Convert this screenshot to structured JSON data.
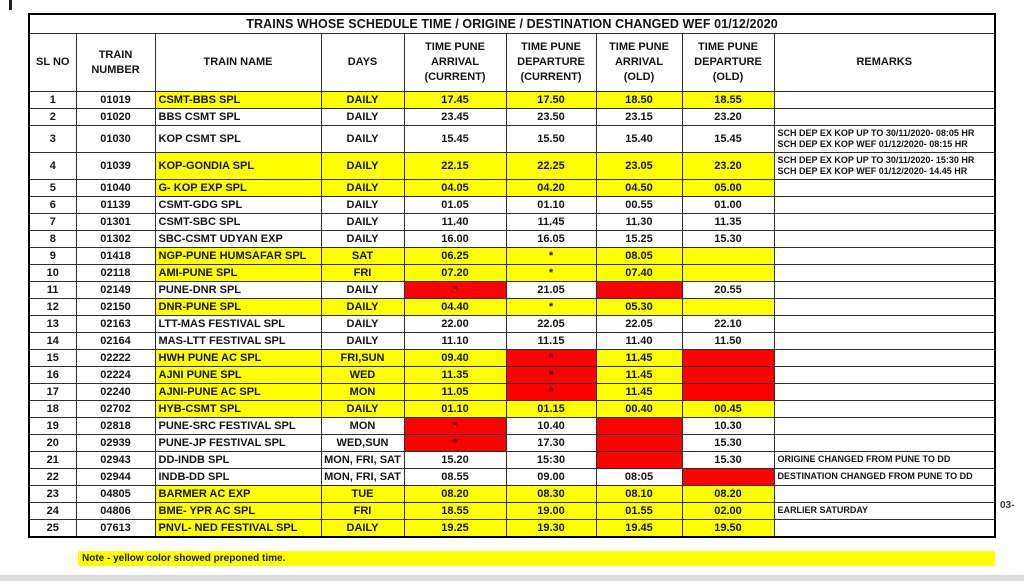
{
  "page": {
    "note": "Note - yellow color showed preponed time.",
    "page_label": "03-"
  },
  "colors": {
    "yellow_highlight": "#ffff00",
    "red_highlight": "#ff0000",
    "note_background": "#ffff00"
  },
  "table": {
    "title": "TRAINS WHOSE SCHEDULE TIME / ORIGINE / DESTINATION CHANGED WEF 01/12/2020",
    "columns": [
      "SL NO",
      "TRAIN\nNUMBER",
      "TRAIN NAME",
      "DAYS",
      "TIME PUNE\nARRIVAL\n(CURRENT)",
      "TIME PUNE\nDEPARTURE\n(CURRENT)",
      "TIME PUNE\nARRIVAL\n(OLD)",
      "TIME PUNE\nDEPARTURE\n(OLD)",
      "REMARKS"
    ],
    "rows": [
      {
        "cells": [
          "1",
          "01019",
          "CSMT-BBS SPL",
          "DAILY",
          "17.45",
          "17.50",
          "18.50",
          "18.55",
          ""
        ],
        "fills": [
          "w",
          "w",
          "y",
          "y",
          "y",
          "y",
          "y",
          "y",
          "w"
        ]
      },
      {
        "cells": [
          "2",
          "01020",
          "BBS CSMT SPL",
          "DAILY",
          "23.45",
          "23.50",
          "23.15",
          "23.20",
          ""
        ],
        "fills": [
          "w",
          "w",
          "w",
          "w",
          "w",
          "w",
          "w",
          "w",
          "w"
        ]
      },
      {
        "cells": [
          "3",
          "01030",
          "KOP CSMT SPL",
          "DAILY",
          "15.45",
          "15.50",
          "15.40",
          "15.45",
          "SCH DEP EX KOP UP TO 30/11/2020- 08:05 HR\nSCH DEP EX KOP WEF 01/12/2020- 08:15 HR"
        ],
        "fills": [
          "w",
          "w",
          "w",
          "w",
          "w",
          "w",
          "w",
          "w",
          "w"
        ],
        "tall": true
      },
      {
        "cells": [
          "4",
          "01039",
          "KOP-GONDIA SPL",
          "DAILY",
          "22.15",
          "22.25",
          "23.05",
          "23.20",
          "SCH DEP EX KOP UP TO 30/11/2020- 15:30 HR\nSCH DEP EX KOP WEF 01/12/2020- 14.45 HR"
        ],
        "fills": [
          "w",
          "w",
          "y",
          "y",
          "y",
          "y",
          "y",
          "y",
          "w"
        ],
        "tall": true
      },
      {
        "cells": [
          "5",
          "01040",
          "G- KOP EXP SPL",
          "DAILY",
          "04.05",
          "04.20",
          "04.50",
          "05.00",
          ""
        ],
        "fills": [
          "w",
          "w",
          "y",
          "y",
          "y",
          "y",
          "y",
          "y",
          "w"
        ]
      },
      {
        "cells": [
          "6",
          "01139",
          "CSMT-GDG SPL",
          "DAILY",
          "01.05",
          "01.10",
          "00.55",
          "01.00",
          ""
        ],
        "fills": [
          "w",
          "w",
          "w",
          "w",
          "w",
          "w",
          "w",
          "w",
          "w"
        ]
      },
      {
        "cells": [
          "7",
          "01301",
          "CSMT-SBC SPL",
          "DAILY",
          "11.40",
          "11.45",
          "11.30",
          "11.35",
          ""
        ],
        "fills": [
          "w",
          "w",
          "w",
          "w",
          "w",
          "w",
          "w",
          "w",
          "w"
        ]
      },
      {
        "cells": [
          "8",
          "01302",
          "SBC-CSMT UDYAN EXP",
          "DAILY",
          "16.00",
          "16.05",
          "15.25",
          "15.30",
          ""
        ],
        "fills": [
          "w",
          "w",
          "w",
          "w",
          "w",
          "w",
          "w",
          "w",
          "w"
        ]
      },
      {
        "cells": [
          "9",
          "01418",
          "NGP-PUNE HUMSAFAR SPL",
          "SAT",
          "06.25",
          "*",
          "08.05",
          "",
          ""
        ],
        "fills": [
          "w",
          "w",
          "y",
          "y",
          "y",
          "y",
          "y",
          "y",
          "w"
        ]
      },
      {
        "cells": [
          "10",
          "02118",
          "AMI-PUNE SPL",
          "FRI",
          "07.20",
          "*",
          "07.40",
          "",
          ""
        ],
        "fills": [
          "w",
          "w",
          "y",
          "y",
          "y",
          "y",
          "y",
          "y",
          "w"
        ]
      },
      {
        "cells": [
          "11",
          "02149",
          "PUNE-DNR SPL",
          "DAILY",
          "*",
          "21.05",
          "",
          "20.55",
          ""
        ],
        "fills": [
          "w",
          "w",
          "w",
          "w",
          "r",
          "w",
          "r",
          "w",
          "w"
        ]
      },
      {
        "cells": [
          "12",
          "02150",
          "DNR-PUNE SPL",
          "DAILY",
          "04.40",
          "*",
          "05.30",
          "",
          ""
        ],
        "fills": [
          "w",
          "w",
          "y",
          "y",
          "y",
          "y",
          "y",
          "y",
          "w"
        ]
      },
      {
        "cells": [
          "13",
          "02163",
          "LTT-MAS FESTIVAL SPL",
          "DAILY",
          "22.00",
          "22.05",
          "22.05",
          "22.10",
          ""
        ],
        "fills": [
          "w",
          "w",
          "w",
          "w",
          "w",
          "w",
          "w",
          "w",
          "w"
        ]
      },
      {
        "cells": [
          "14",
          "02164",
          "MAS-LTT FESTIVAL SPL",
          "DAILY",
          "11.10",
          "11.15",
          "11.40",
          "11.50",
          ""
        ],
        "fills": [
          "w",
          "w",
          "w",
          "w",
          "w",
          "w",
          "w",
          "w",
          "w"
        ]
      },
      {
        "cells": [
          "15",
          "02222",
          "HWH PUNE AC SPL",
          "FRI,SUN",
          "09.40",
          "*",
          "11.45",
          "",
          ""
        ],
        "fills": [
          "w",
          "w",
          "y",
          "y",
          "y",
          "r",
          "y",
          "r",
          "w"
        ]
      },
      {
        "cells": [
          "16",
          "02224",
          "AJNI PUNE SPL",
          "WED",
          "11.35",
          "*",
          "11.45",
          "",
          ""
        ],
        "fills": [
          "w",
          "w",
          "y",
          "y",
          "y",
          "r",
          "y",
          "r",
          "w"
        ]
      },
      {
        "cells": [
          "17",
          "02240",
          "AJNI-PUNE AC SPL",
          "MON",
          "11.05",
          "*",
          "11.45",
          "",
          ""
        ],
        "fills": [
          "w",
          "w",
          "y",
          "y",
          "y",
          "r",
          "y",
          "r",
          "w"
        ]
      },
      {
        "cells": [
          "18",
          "02702",
          "HYB-CSMT SPL",
          "DAILY",
          "01.10",
          "01.15",
          "00.40",
          "00.45",
          ""
        ],
        "fills": [
          "w",
          "w",
          "y",
          "y",
          "y",
          "y",
          "y",
          "y",
          "w"
        ]
      },
      {
        "cells": [
          "19",
          "02818",
          "PUNE-SRC FESTIVAL SPL",
          "MON",
          "*",
          "10.40",
          "",
          "10.30",
          ""
        ],
        "fills": [
          "w",
          "w",
          "w",
          "w",
          "r",
          "w",
          "r",
          "w",
          "w"
        ]
      },
      {
        "cells": [
          "20",
          "02939",
          "PUNE-JP FESTIVAL SPL",
          "WED,SUN",
          "*",
          "17.30",
          "",
          "15.30",
          ""
        ],
        "fills": [
          "w",
          "w",
          "w",
          "w",
          "r",
          "w",
          "r",
          "w",
          "w"
        ]
      },
      {
        "cells": [
          "21",
          "02943",
          "DD-INDB SPL",
          "MON, FRI, SAT",
          "15.20",
          "15:30",
          "",
          "15.30",
          "ORIGINE CHANGED FROM PUNE TO DD"
        ],
        "fills": [
          "w",
          "w",
          "w",
          "w",
          "w",
          "w",
          "r",
          "w",
          "w"
        ]
      },
      {
        "cells": [
          "22",
          "02944",
          "INDB-DD SPL",
          "MON, FRI, SAT",
          "08.55",
          "09.00",
          "08:05",
          "",
          "DESTINATION CHANGED FROM PUNE TO DD"
        ],
        "fills": [
          "w",
          "w",
          "w",
          "w",
          "w",
          "w",
          "w",
          "r",
          "w"
        ]
      },
      {
        "cells": [
          "23",
          "04805",
          "BARMER AC EXP",
          "TUE",
          "08.20",
          "08.30",
          "08.10",
          "08.20",
          ""
        ],
        "fills": [
          "w",
          "w",
          "y",
          "y",
          "y",
          "y",
          "y",
          "y",
          "w"
        ]
      },
      {
        "cells": [
          "24",
          "04806",
          "BME- YPR AC SPL",
          "FRI",
          "18.55",
          "19.00",
          "01.55",
          "02.00",
          "EARLIER SATURDAY"
        ],
        "fills": [
          "w",
          "w",
          "y",
          "y",
          "y",
          "y",
          "y",
          "y",
          "w"
        ]
      },
      {
        "cells": [
          "25",
          "07613",
          "PNVL- NED FESTIVAL SPL",
          "DAILY",
          "19.25",
          "19.30",
          "19.45",
          "19.50",
          ""
        ],
        "fills": [
          "w",
          "w",
          "y",
          "y",
          "y",
          "y",
          "y",
          "y",
          "w"
        ]
      }
    ]
  }
}
